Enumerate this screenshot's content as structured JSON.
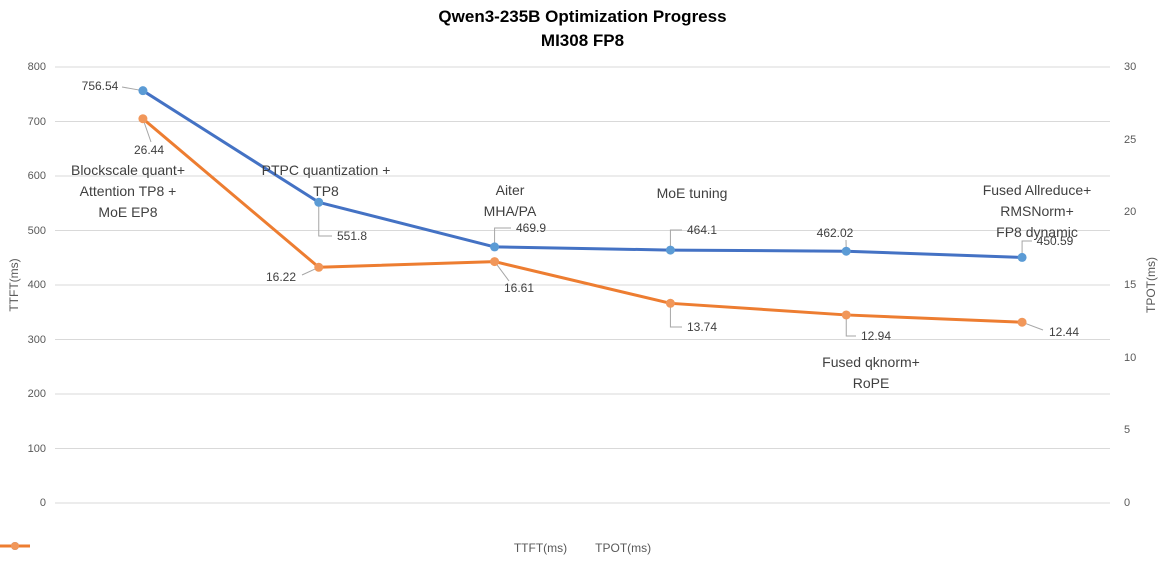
{
  "title": {
    "line1": "Qwen3-235B Optimization Progress",
    "line2": "MI308 FP8"
  },
  "chart_data": {
    "type": "line",
    "title": "Qwen3-235B Optimization Progress MI308 FP8",
    "categories": [
      "Blockscale quant+\nAttention TP8 +\nMoE EP8",
      "PTPC quantization +\nTP8",
      "Aiter\nMHA/PA",
      "MoE tuning",
      "Fused qknorm+\nRoPE",
      "Fused Allreduce+\nRMSNorm+\nFP8 dynamic"
    ],
    "series": [
      {
        "name": "TTFT(ms)",
        "axis": "left",
        "color": "#4472C4",
        "marker_color": "#5B9BD5",
        "values": [
          756.54,
          551.8,
          469.9,
          464.1,
          462.02,
          450.59
        ]
      },
      {
        "name": "TPOT(ms)",
        "axis": "right",
        "color": "#ED7D31",
        "marker_color": "#F1975A",
        "values": [
          26.44,
          16.22,
          16.61,
          13.74,
          12.94,
          12.44
        ]
      }
    ],
    "left_axis": {
      "title": "TTFT(ms)",
      "min": 0,
      "max": 800,
      "step": 100
    },
    "right_axis": {
      "title": "TPOT(ms)",
      "min": 0,
      "max": 30,
      "step": 5
    },
    "legend": {
      "position": "bottom",
      "items": [
        "TTFT(ms)",
        "TPOT(ms)"
      ]
    },
    "grid": true
  },
  "colors": {
    "background": "#FFFFFF",
    "gridline": "#D9D9D9",
    "tick_label": "#595959",
    "axis_title": "#595959",
    "annotation": "#404040",
    "data_label": "#404040",
    "leader_line": "#A6A6A6",
    "title": "#000000"
  }
}
